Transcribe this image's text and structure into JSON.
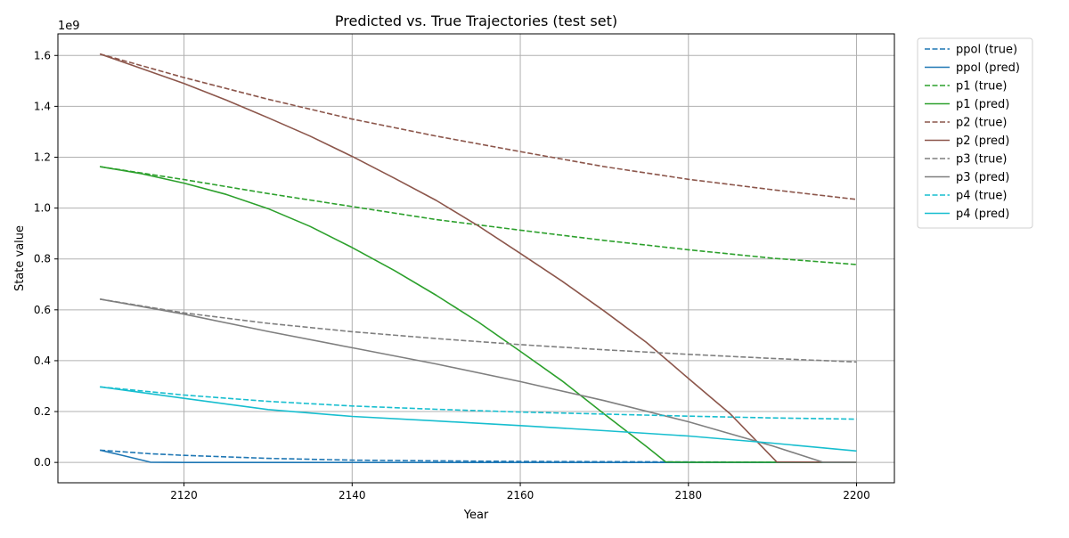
{
  "chart_data": {
    "type": "line",
    "title": "Predicted vs. True Trajectories (test set)",
    "xlabel": "Year",
    "ylabel": "State value",
    "y_offset_label": "1e9",
    "xlim": [
      2105,
      2204.5
    ],
    "ylim": [
      -0.08,
      1.685
    ],
    "y_unit": "1e9",
    "x_ticks": [
      2120,
      2140,
      2160,
      2180,
      2200
    ],
    "y_ticks": [
      0.0,
      0.2,
      0.4,
      0.6,
      0.8,
      1.0,
      1.2,
      1.4,
      1.6
    ],
    "y_tick_labels": [
      "0.0",
      "0.2",
      "0.4",
      "0.6",
      "0.8",
      "1.0",
      "1.2",
      "1.4",
      "1.6"
    ],
    "grid": true,
    "legend_position": "outside-top-right",
    "series": [
      {
        "name": "ppol (true)",
        "color": "#1f77b4",
        "dash": true,
        "x": [
          2110,
          2116,
          2120,
          2130,
          2140,
          2150,
          2160,
          2170,
          2180,
          2190,
          2200
        ],
        "y": [
          0.048,
          0.034,
          0.028,
          0.016,
          0.009,
          0.006,
          0.004,
          0.003,
          0.002,
          0.001,
          0.001
        ]
      },
      {
        "name": "ppol (pred)",
        "color": "#1f77b4",
        "dash": false,
        "x": [
          2110,
          2113,
          2116,
          2120,
          2140,
          2160,
          2180,
          2200
        ],
        "y": [
          0.048,
          0.025,
          0.001,
          0.0,
          0.0,
          0.0,
          0.0,
          0.0
        ]
      },
      {
        "name": "p1 (true)",
        "color": "#2ca02c",
        "dash": true,
        "x": [
          2110,
          2120,
          2130,
          2140,
          2150,
          2160,
          2170,
          2180,
          2190,
          2200
        ],
        "y": [
          1.163,
          1.112,
          1.057,
          1.006,
          0.955,
          0.913,
          0.873,
          0.836,
          0.803,
          0.778
        ]
      },
      {
        "name": "p1 (pred)",
        "color": "#2ca02c",
        "dash": false,
        "x": [
          2110,
          2115,
          2120,
          2125,
          2130,
          2135,
          2140,
          2145,
          2150,
          2155,
          2160,
          2165,
          2170,
          2175,
          2177.3,
          2180,
          2190,
          2200
        ],
        "y": [
          1.163,
          1.135,
          1.098,
          1.054,
          0.998,
          0.928,
          0.845,
          0.755,
          0.657,
          0.552,
          0.437,
          0.32,
          0.19,
          0.063,
          0.002,
          0.001,
          0.001,
          0.001
        ]
      },
      {
        "name": "p2 (true)",
        "color": "#8c564b",
        "dash": true,
        "x": [
          2110,
          2120,
          2130,
          2140,
          2150,
          2160,
          2170,
          2180,
          2190,
          2200
        ],
        "y": [
          1.606,
          1.513,
          1.428,
          1.35,
          1.283,
          1.222,
          1.163,
          1.113,
          1.072,
          1.034
        ]
      },
      {
        "name": "p2 (pred)",
        "color": "#8c564b",
        "dash": false,
        "x": [
          2110,
          2115,
          2120,
          2125,
          2130,
          2135,
          2140,
          2145,
          2150,
          2155,
          2160,
          2165,
          2170,
          2175,
          2180,
          2185,
          2190.5,
          2200
        ],
        "y": [
          1.606,
          1.548,
          1.49,
          1.425,
          1.355,
          1.283,
          1.203,
          1.118,
          1.03,
          0.93,
          0.822,
          0.712,
          0.595,
          0.472,
          0.33,
          0.19,
          0.002,
          0.001
        ]
      },
      {
        "name": "p3 (true)",
        "color": "#7f7f7f",
        "dash": true,
        "x": [
          2110,
          2120,
          2130,
          2140,
          2150,
          2160,
          2170,
          2180,
          2190,
          2200
        ],
        "y": [
          0.642,
          0.588,
          0.547,
          0.514,
          0.487,
          0.463,
          0.443,
          0.425,
          0.409,
          0.395
        ]
      },
      {
        "name": "p3 (pred)",
        "color": "#7f7f7f",
        "dash": false,
        "x": [
          2110,
          2120,
          2130,
          2140,
          2150,
          2160,
          2170,
          2180,
          2190,
          2196,
          2200
        ],
        "y": [
          0.642,
          0.583,
          0.515,
          0.451,
          0.387,
          0.318,
          0.243,
          0.16,
          0.065,
          0.001,
          0.001
        ]
      },
      {
        "name": "p4 (true)",
        "color": "#17becf",
        "dash": true,
        "x": [
          2110,
          2120,
          2130,
          2140,
          2150,
          2160,
          2170,
          2180,
          2190,
          2200
        ],
        "y": [
          0.297,
          0.265,
          0.24,
          0.222,
          0.209,
          0.198,
          0.19,
          0.182,
          0.175,
          0.17
        ]
      },
      {
        "name": "p4 (pred)",
        "color": "#17becf",
        "dash": false,
        "x": [
          2110,
          2120,
          2130,
          2140,
          2150,
          2160,
          2170,
          2180,
          2190,
          2200
        ],
        "y": [
          0.297,
          0.252,
          0.208,
          0.181,
          0.163,
          0.145,
          0.125,
          0.104,
          0.076,
          0.045
        ]
      }
    ]
  }
}
